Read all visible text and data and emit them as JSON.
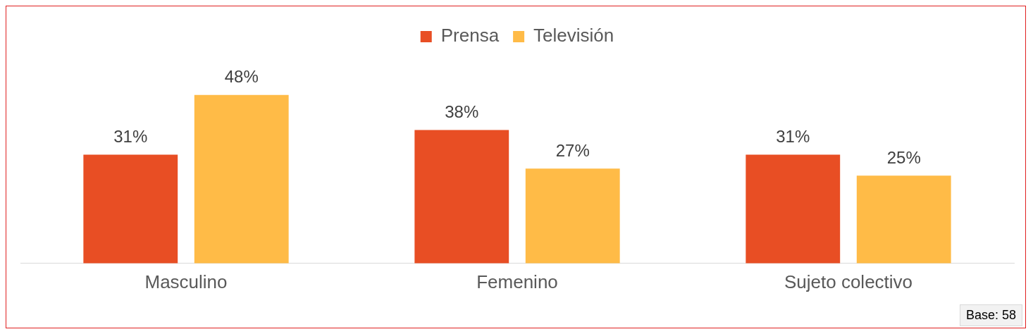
{
  "chart_data": {
    "type": "bar",
    "categories": [
      "Masculino",
      "Femenino",
      "Sujeto colectivo"
    ],
    "series": [
      {
        "name": "Prensa",
        "color": "#e84e24",
        "values": [
          31,
          38,
          31
        ],
        "value_labels": [
          "31%",
          "38%",
          "31%"
        ]
      },
      {
        "name": "Televisión",
        "color": "#ffbb47",
        "values": [
          48,
          27,
          25
        ],
        "value_labels": [
          "48%",
          "27%",
          "25%"
        ]
      }
    ],
    "legend": "top",
    "grid": false,
    "tick_labels": "x",
    "annotations": [
      "Base: 58"
    ]
  }
}
